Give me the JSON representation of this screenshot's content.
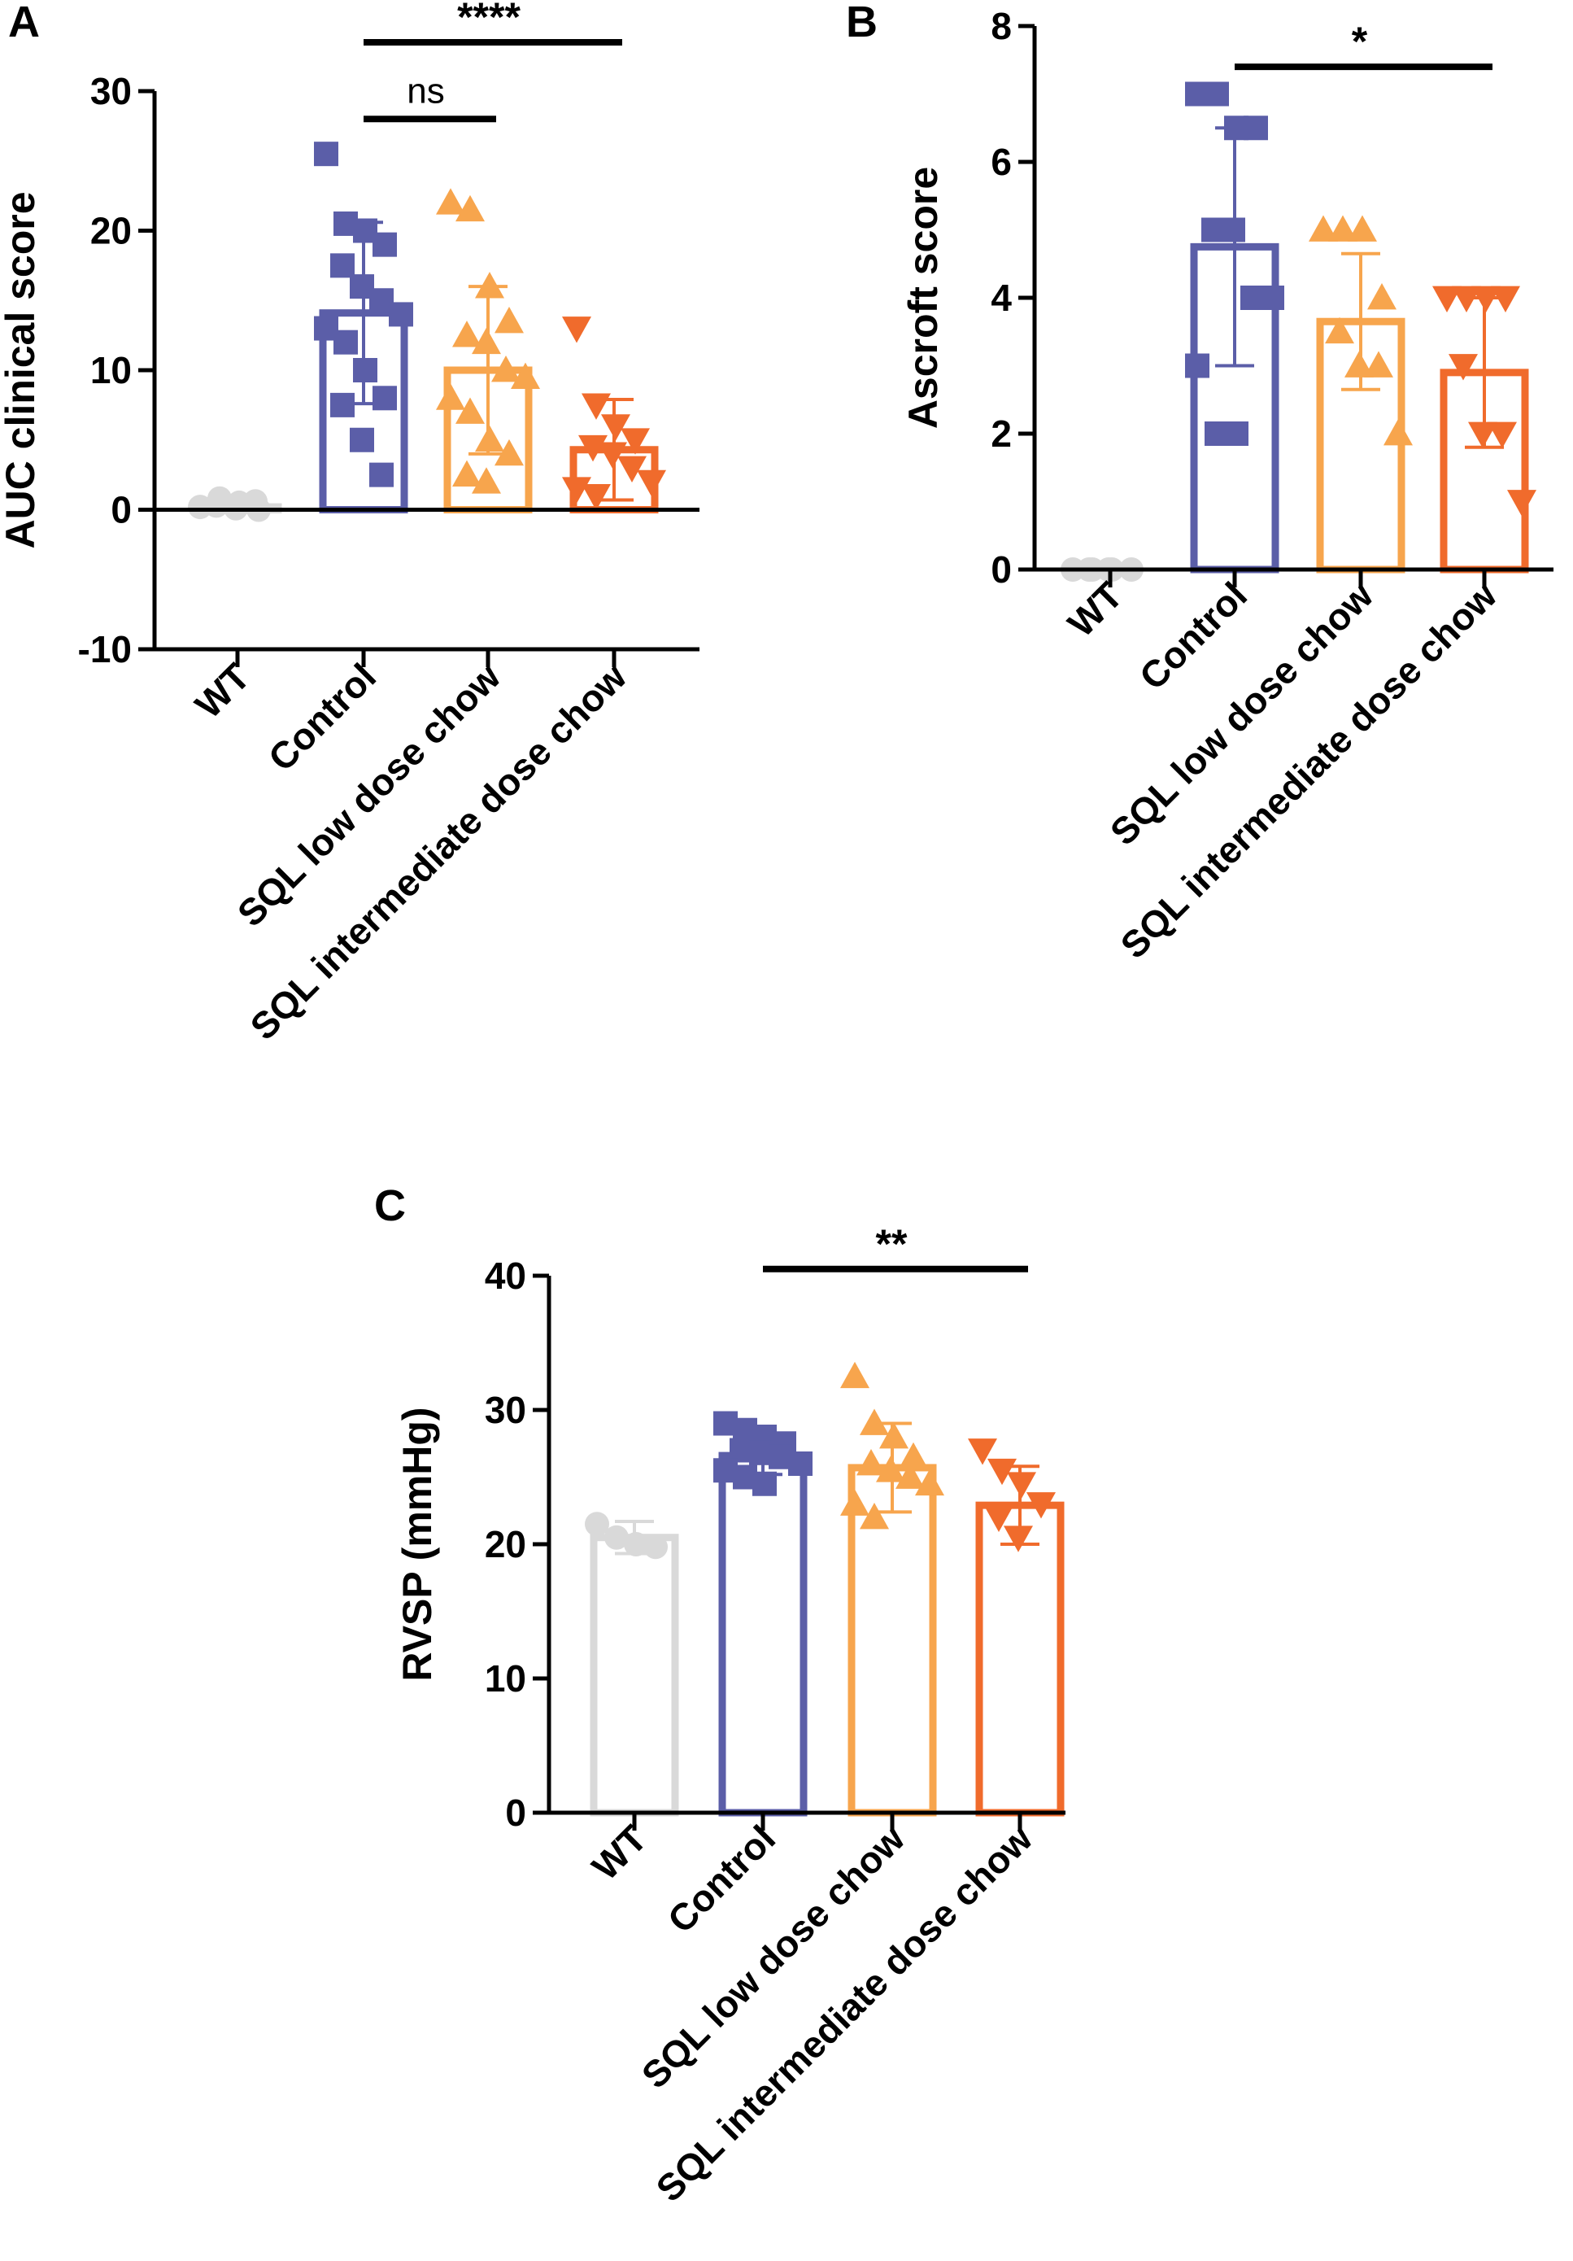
{
  "colors": {
    "WT": "#d9d9d9",
    "Control": "#5b5ea8",
    "SQL low dose chow": "#f7a54d",
    "SQL intermediate dose chow": "#f06b2c",
    "axis": "#000000"
  },
  "chart_data": [
    {
      "panel": "A",
      "type": "bar",
      "ylabel": "AUC clinical score",
      "ylim": [
        -10,
        30
      ],
      "yticks": [
        -10,
        0,
        10,
        20,
        30
      ],
      "grid": false,
      "categories": [
        "WT",
        "Control",
        "SQL low dose chow",
        "SQL intermediate dose chow"
      ],
      "markers": [
        "circle",
        "square",
        "triangle-up",
        "triangle-down"
      ],
      "means": [
        0.2,
        14.1,
        10.0,
        4.3
      ],
      "sd": [
        0.4,
        6.5,
        6.0,
        3.6
      ],
      "points": [
        [
          0.2,
          0.8,
          0.5,
          0.0,
          0.3,
          0.1,
          0.6
        ],
        [
          25.5,
          20.5,
          20.0,
          19.0,
          17.5,
          16.0,
          15.0,
          14.0,
          13.0,
          12.0,
          10.0,
          8.0,
          7.5,
          5.0,
          2.5
        ],
        [
          22.0,
          21.5,
          16.0,
          13.5,
          12.5,
          12.0,
          10.0,
          9.5,
          8.0,
          7.0,
          5.0,
          4.0,
          2.5,
          2.0
        ],
        [
          13.0,
          7.5,
          6.0,
          5.0,
          4.5,
          4.0,
          3.0,
          2.0,
          1.5,
          1.0
        ]
      ],
      "significance": [
        {
          "from": "Control",
          "to": "SQL low dose chow",
          "label": "ns",
          "y": 28
        },
        {
          "from": "Control",
          "to": "SQL intermediate dose chow",
          "label": "****",
          "y": 33.5
        }
      ]
    },
    {
      "panel": "B",
      "type": "bar",
      "ylabel": "Ascroft score",
      "ylim": [
        0,
        8
      ],
      "yticks": [
        0,
        2,
        4,
        6,
        8
      ],
      "grid": false,
      "categories": [
        "WT",
        "Control",
        "SQL low dose chow",
        "SQL intermediate dose chow"
      ],
      "markers": [
        "circle",
        "square",
        "triangle-up",
        "triangle-down"
      ],
      "means": [
        0.0,
        4.75,
        3.65,
        2.9
      ],
      "sd": [
        0.0,
        1.75,
        1.0,
        1.1
      ],
      "points": [
        [
          0,
          0,
          0,
          0,
          0,
          0
        ],
        [
          7,
          7,
          6.5,
          6.5,
          5,
          5,
          4,
          4,
          3,
          2,
          2
        ],
        [
          5,
          5,
          5,
          4,
          3.5,
          3,
          3,
          2
        ],
        [
          4,
          4,
          4,
          4,
          3,
          2,
          2,
          1
        ]
      ],
      "significance": [
        {
          "from": "Control",
          "to": "SQL intermediate dose chow",
          "label": "*",
          "y": 7.4
        }
      ]
    },
    {
      "panel": "C",
      "type": "bar",
      "ylabel": "RVSP (mmHg)",
      "ylim": [
        0,
        40
      ],
      "yticks": [
        0,
        10,
        20,
        30,
        40
      ],
      "grid": false,
      "categories": [
        "WT",
        "Control",
        "SQL low dose chow",
        "SQL intermediate dose chow"
      ],
      "markers": [
        "circle",
        "square",
        "triangle-up",
        "triangle-down"
      ],
      "means": [
        20.5,
        26.6,
        25.7,
        22.9
      ],
      "sd": [
        1.2,
        1.4,
        3.3,
        2.9
      ],
      "points": [
        [
          21.5,
          20.5,
          20.0,
          19.8
        ],
        [
          29.0,
          28.5,
          28.0,
          27.5,
          27.0,
          26.8,
          26.5,
          26.0,
          25.5,
          25.0,
          24.5
        ],
        [
          32.5,
          29.0,
          28.0,
          26.5,
          26.0,
          25.5,
          25.0,
          24.5,
          23.0,
          22.0
        ],
        [
          27.0,
          25.5,
          24.5,
          23.0,
          22.0,
          20.5
        ]
      ],
      "significance": [
        {
          "from": "Control",
          "to": "SQL intermediate dose chow",
          "label": "**",
          "y": 40.5
        }
      ]
    }
  ]
}
